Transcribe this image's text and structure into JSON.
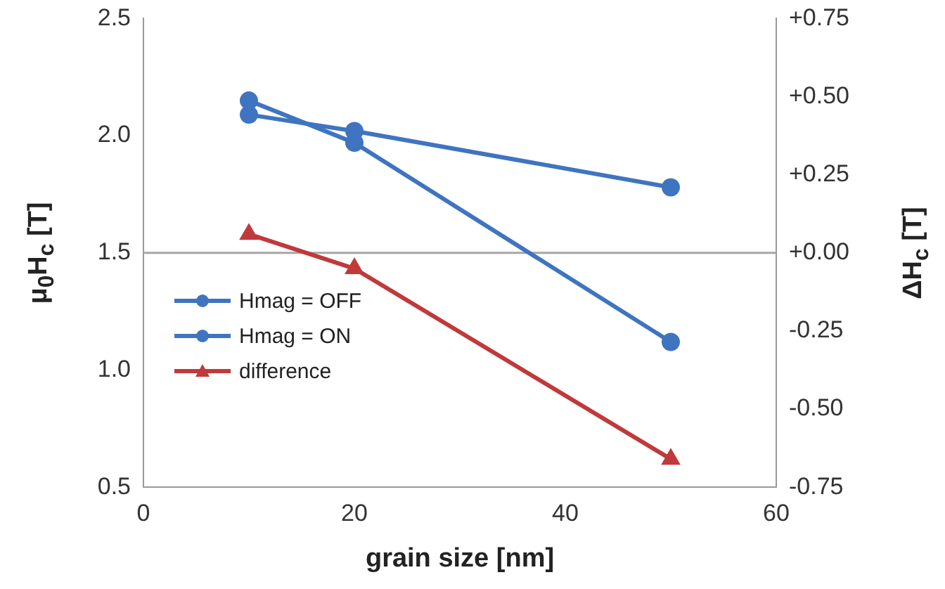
{
  "chart_data": {
    "type": "line",
    "xlabel": "grain size [nm]",
    "ylabel": "μ$_{0}$H$_{c}$ [T]",
    "y2label": "ΔH$_{c}$ [T]",
    "xlim": [
      0,
      60
    ],
    "xticks": [
      0,
      20,
      40,
      60
    ],
    "ylim": [
      0.5,
      2.5
    ],
    "yticks": [
      {
        "value": 0.5,
        "label": "0.5"
      },
      {
        "value": 1,
        "label": "1.0"
      },
      {
        "value": 1.5,
        "label": "1.5"
      },
      {
        "value": 2,
        "label": "2.0"
      },
      {
        "value": 2.5,
        "label": "2.5"
      }
    ],
    "y2lim": [
      -0.75,
      0.75
    ],
    "y2ticks": [
      {
        "value": -0.75,
        "label": "-0.75"
      },
      {
        "value": -0.5,
        "label": "-0.50"
      },
      {
        "value": -0.25,
        "label": "-0.25"
      },
      {
        "value": 0,
        "label": "+0.00"
      },
      {
        "value": 0.25,
        "label": "+0.25"
      },
      {
        "value": 0.5,
        "label": "+0.50"
      },
      {
        "value": 0.75,
        "label": "+0.75"
      }
    ],
    "grid": false,
    "legend": "left",
    "line_style": "solid",
    "ref_lines": [
      {
        "axis": "y2",
        "value": 0,
        "color": "#a6a6a6"
      }
    ],
    "series": [
      {
        "name": "Hmag = OFF",
        "color": "#3f74c0",
        "x": [
          10,
          20,
          50
        ],
        "values": [
          2.09,
          2.02,
          1.78
        ],
        "marker": "circle"
      },
      {
        "name": "Hmag = ON",
        "color": "#3f74c0",
        "x": [
          10,
          20,
          50
        ],
        "values": [
          2.15,
          1.97,
          1.12
        ],
        "marker": "circle"
      },
      {
        "name": "difference",
        "color": "#c0393b",
        "x": [
          10,
          20,
          50
        ],
        "values": [
          0.06,
          -0.05,
          -0.66
        ],
        "marker": "triangle",
        "axis": "y2"
      }
    ]
  }
}
